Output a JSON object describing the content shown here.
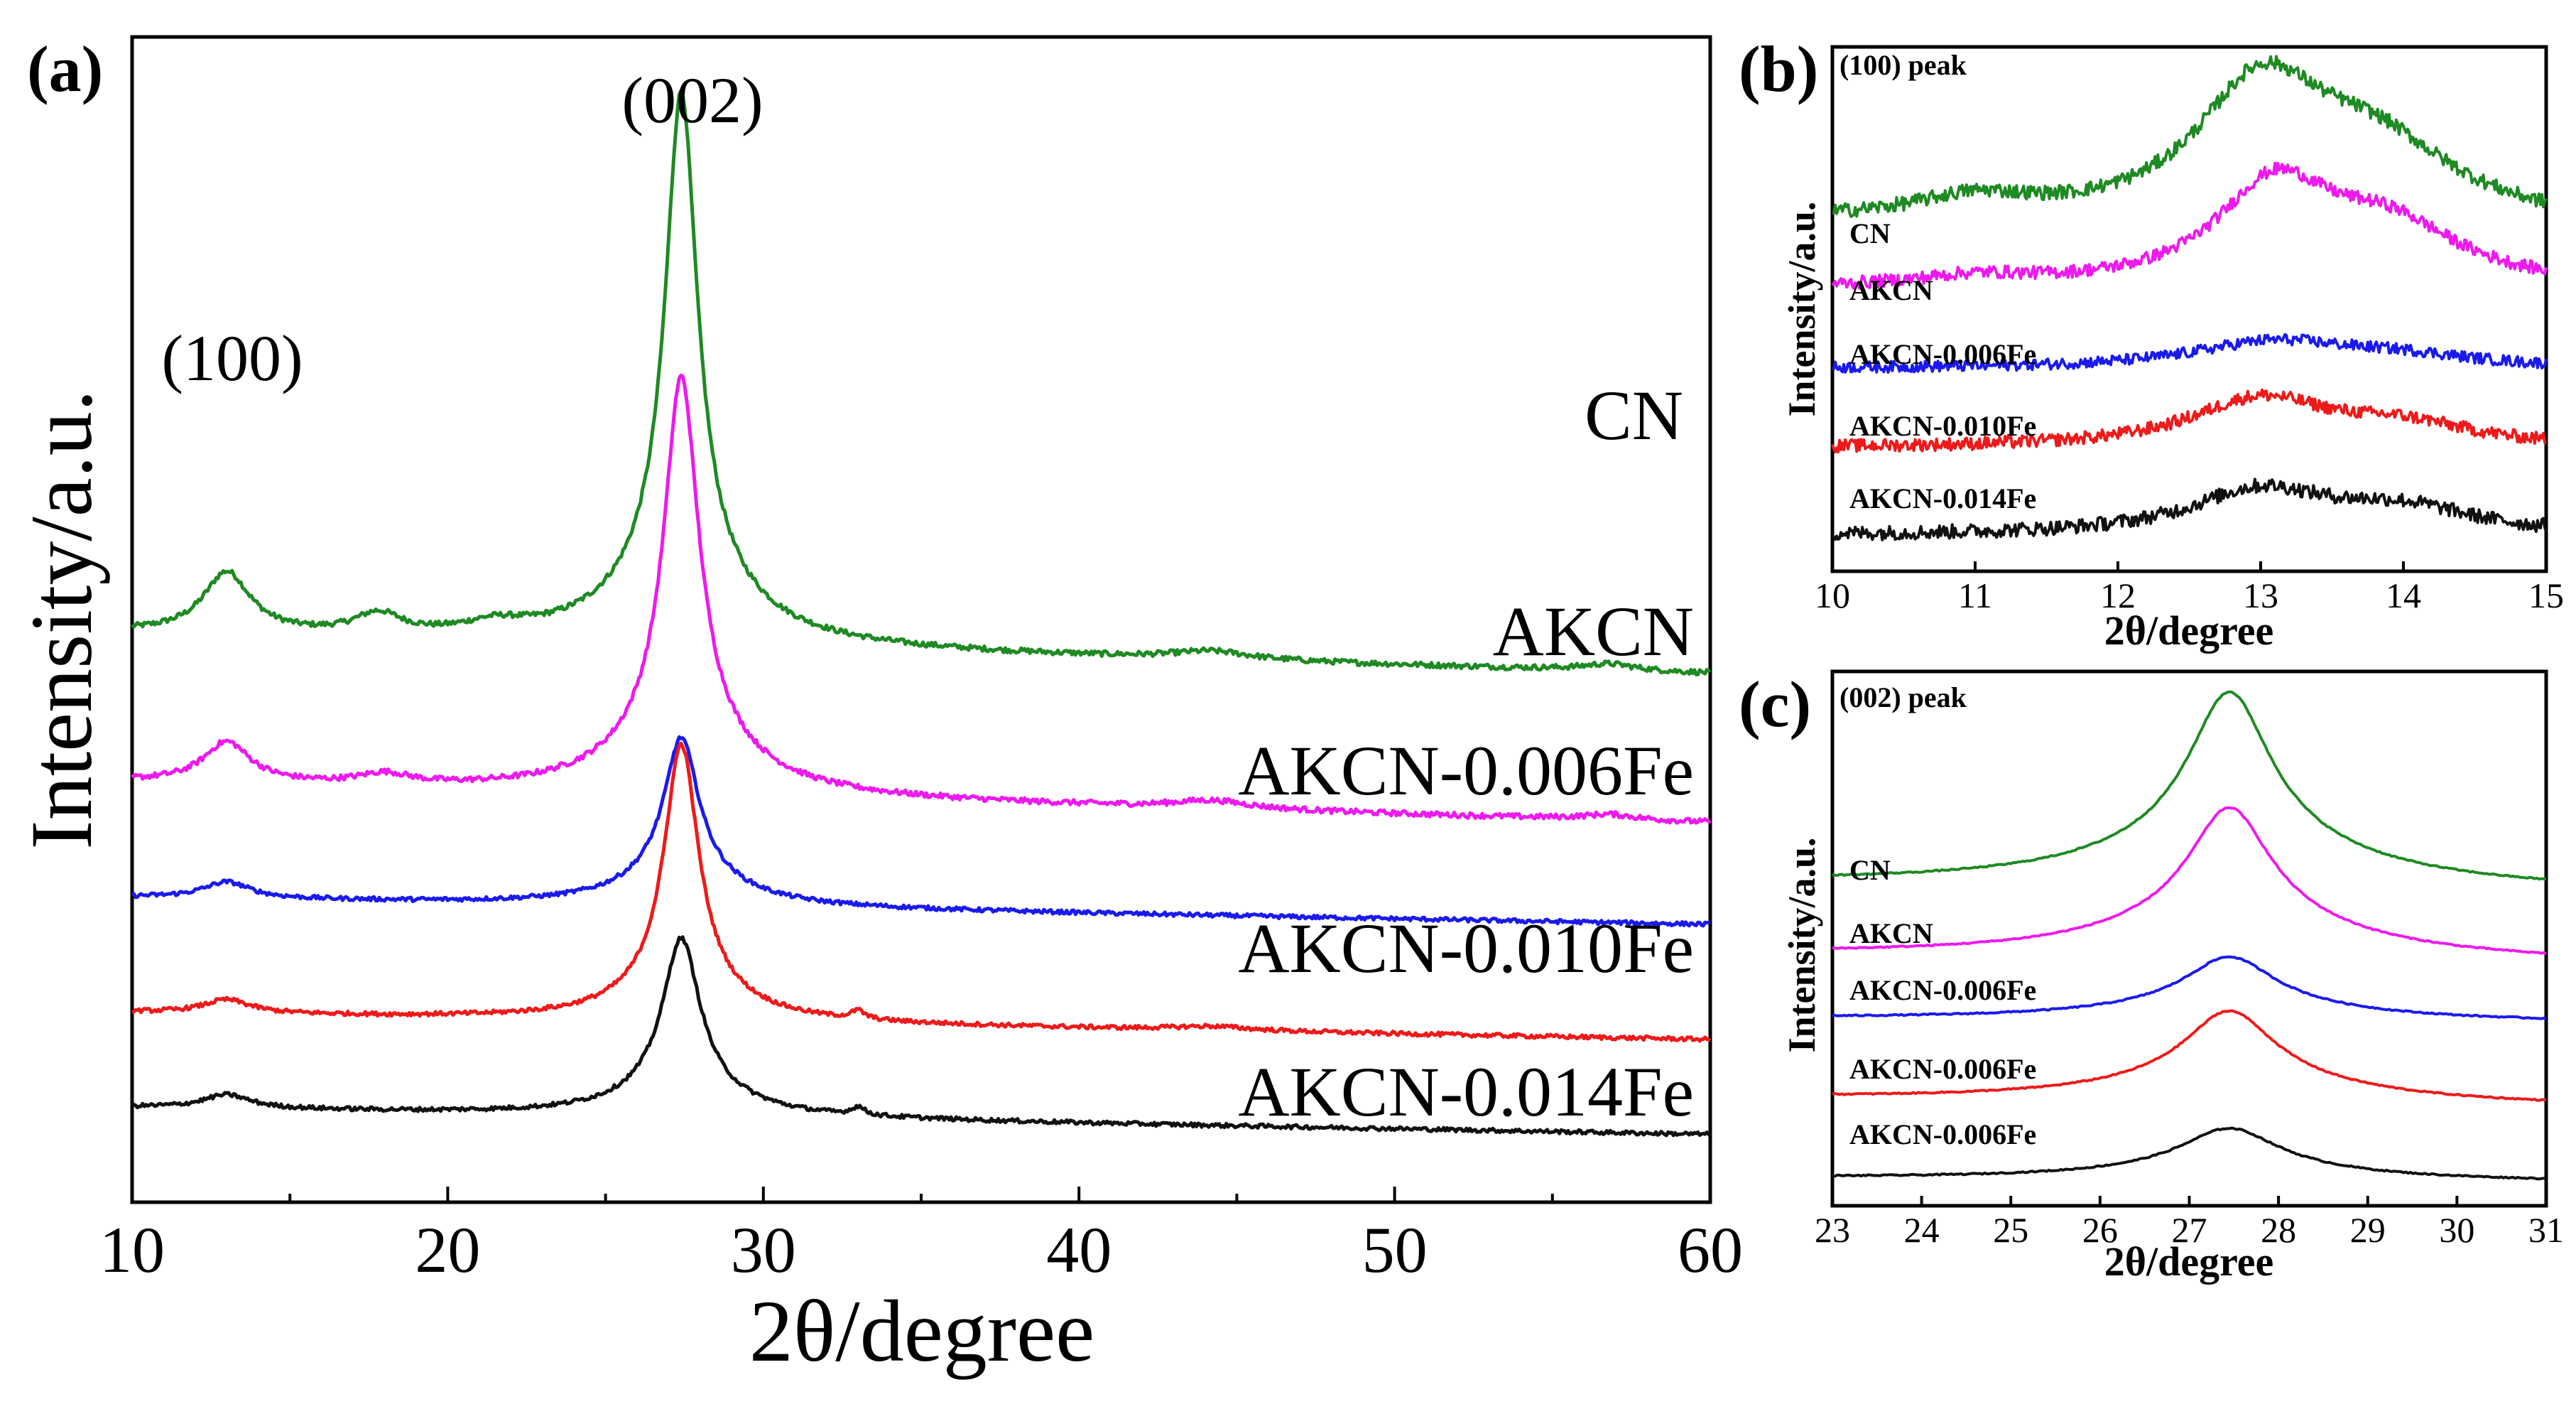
{
  "chart_data": [
    {
      "panel": "(a)",
      "type": "line",
      "title": "",
      "xlabel": "2θ/degree",
      "ylabel": "Intensity/a.u.",
      "xlim": [
        10,
        60
      ],
      "xticks": [
        10,
        20,
        30,
        40,
        50,
        60
      ],
      "peak_annotations": [
        {
          "label": "(100)",
          "x": 13.0
        },
        {
          "label": "(002)",
          "x": 27.4
        }
      ],
      "series": [
        {
          "name": "CN",
          "color": "#1e8a23",
          "baseline": 4.2,
          "tilt": -0.3,
          "peaks": [
            {
              "x": 13.0,
              "h": 0.45,
              "w": 0.9
            },
            {
              "x": 17.8,
              "h": 0.15,
              "w": 0.9
            },
            {
              "x": 21.5,
              "h": 0.08,
              "w": 1.2
            },
            {
              "x": 27.4,
              "h": 3.5,
              "w": 0.6
            },
            {
              "x": 27.4,
              "h": 0.6,
              "w": 2.2
            },
            {
              "x": 44.2,
              "h": 0.06,
              "w": 1.5
            },
            {
              "x": 56.8,
              "h": 0.05,
              "w": 1.0
            }
          ],
          "noise": 0.02
        },
        {
          "name": "AKCN",
          "color": "#ee19ee",
          "baseline": 3.1,
          "tilt": -0.3,
          "peaks": [
            {
              "x": 13.0,
              "h": 0.3,
              "w": 0.9
            },
            {
              "x": 18.0,
              "h": 0.08,
              "w": 1.0
            },
            {
              "x": 27.4,
              "h": 2.6,
              "w": 0.65
            },
            {
              "x": 27.4,
              "h": 0.5,
              "w": 2.2
            },
            {
              "x": 44.2,
              "h": 0.06,
              "w": 1.5
            },
            {
              "x": 56.8,
              "h": 0.04,
              "w": 1.0
            }
          ],
          "noise": 0.02
        },
        {
          "name": "AKCN-0.006Fe",
          "color": "#1a1aee",
          "baseline": 2.25,
          "tilt": -0.2,
          "peaks": [
            {
              "x": 13.0,
              "h": 0.12,
              "w": 0.9
            },
            {
              "x": 27.4,
              "h": 1.0,
              "w": 0.65
            },
            {
              "x": 27.4,
              "h": 0.25,
              "w": 2.0
            }
          ],
          "noise": 0.015
        },
        {
          "name": "AKCN-0.010Fe",
          "color": "#ee1a1a",
          "baseline": 1.4,
          "tilt": -0.2,
          "peaks": [
            {
              "x": 13.0,
              "h": 0.1,
              "w": 0.9
            },
            {
              "x": 27.4,
              "h": 1.8,
              "w": 0.65
            },
            {
              "x": 27.4,
              "h": 0.25,
              "w": 2.0
            },
            {
              "x": 33.0,
              "h": 0.06,
              "w": 0.25
            },
            {
              "x": 44.2,
              "h": 0.03,
              "w": 1.5
            }
          ],
          "noise": 0.015
        },
        {
          "name": "AKCN-0.014Fe",
          "color": "#111111",
          "baseline": 0.7,
          "tilt": -0.2,
          "peaks": [
            {
              "x": 13.0,
              "h": 0.1,
              "w": 0.9
            },
            {
              "x": 27.4,
              "h": 1.1,
              "w": 0.7
            },
            {
              "x": 27.4,
              "h": 0.22,
              "w": 2.0
            },
            {
              "x": 33.0,
              "h": 0.06,
              "w": 0.25
            }
          ],
          "noise": 0.015
        }
      ]
    },
    {
      "panel": "(b)",
      "type": "line",
      "title": "(100) peak",
      "xlabel": "2θ/degree",
      "ylabel": "Intensity/a.u.",
      "xlim": [
        10,
        15
      ],
      "xticks": [
        10,
        11,
        12,
        13,
        14,
        15
      ],
      "series": [
        {
          "name": "CN",
          "color": "#1e8a23",
          "baseline": 4.4,
          "tilt": -0.1,
          "peaks": [
            {
              "x": 13.0,
              "h": 1.65,
              "w": 0.55
            },
            {
              "x": 13.8,
              "h": 0.9,
              "w": 0.7
            },
            {
              "x": 11.0,
              "h": 0.25,
              "w": 0.5
            }
          ],
          "noise": 0.09
        },
        {
          "name": "AKCN",
          "color": "#ee19ee",
          "baseline": 3.55,
          "tilt": 0.0,
          "peaks": [
            {
              "x": 13.1,
              "h": 1.25,
              "w": 0.5
            },
            {
              "x": 13.9,
              "h": 0.7,
              "w": 0.6
            },
            {
              "x": 11.0,
              "h": 0.12,
              "w": 0.5
            }
          ],
          "noise": 0.08
        },
        {
          "name": "AKCN-0.006Fe",
          "color": "#1a1aee",
          "baseline": 2.55,
          "tilt": 0.0,
          "peaks": [
            {
              "x": 13.1,
              "h": 0.33,
              "w": 0.7
            },
            {
              "x": 14.0,
              "h": 0.12,
              "w": 0.6
            }
          ],
          "noise": 0.07
        },
        {
          "name": "AKCN-0.010Fe",
          "color": "#ee1a1a",
          "baseline": 1.55,
          "tilt": 0.0,
          "peaks": [
            {
              "x": 13.0,
              "h": 0.6,
              "w": 0.6
            },
            {
              "x": 14.0,
              "h": 0.25,
              "w": 0.6
            }
          ],
          "noise": 0.08
        },
        {
          "name": "AKCN-0.014Fe",
          "color": "#111111",
          "baseline": 0.45,
          "tilt": 0.0,
          "peaks": [
            {
              "x": 13.0,
              "h": 0.55,
              "w": 0.6
            },
            {
              "x": 14.0,
              "h": 0.3,
              "w": 0.6
            }
          ],
          "noise": 0.09
        }
      ]
    },
    {
      "panel": "(c)",
      "type": "line",
      "title": "(002) peak",
      "xlabel": "2θ/degree",
      "ylabel": "Intensity/a.u.",
      "xlim": [
        23,
        31
      ],
      "xticks": [
        23,
        24,
        25,
        26,
        27,
        28,
        29,
        30,
        31
      ],
      "series": [
        {
          "name": "CN",
          "color": "#1e8a23",
          "baseline": 4.05,
          "tilt": -0.1,
          "peaks": [
            {
              "x": 27.45,
              "h": 1.85,
              "w": 0.55
            },
            {
              "x": 27.45,
              "h": 0.6,
              "w": 1.6
            }
          ],
          "noise": 0.008
        },
        {
          "name": "AKCN",
          "color": "#ee19ee",
          "baseline": 3.15,
          "tilt": -0.1,
          "peaks": [
            {
              "x": 27.45,
              "h": 1.4,
              "w": 0.55
            },
            {
              "x": 27.45,
              "h": 0.5,
              "w": 1.6
            }
          ],
          "noise": 0.008
        },
        {
          "name": "AKCN-0.006Fe",
          "color": "#1a1aee",
          "baseline": 2.35,
          "tilt": -0.05,
          "peaks": [
            {
              "x": 27.45,
              "h": 0.6,
              "w": 0.6
            },
            {
              "x": 27.45,
              "h": 0.2,
              "w": 1.6
            }
          ],
          "noise": 0.008
        },
        {
          "name": "AKCN-0.006Fe",
          "color": "#ee1a1a",
          "baseline": 1.35,
          "tilt": -0.1,
          "peaks": [
            {
              "x": 27.45,
              "h": 0.85,
              "w": 0.6
            },
            {
              "x": 27.45,
              "h": 0.3,
              "w": 1.6
            }
          ],
          "noise": 0.008
        },
        {
          "name": "AKCN-0.006Fe",
          "color": "#111111",
          "baseline": 0.35,
          "tilt": -0.05,
          "peaks": [
            {
              "x": 27.45,
              "h": 0.5,
              "w": 0.65
            },
            {
              "x": 27.45,
              "h": 0.15,
              "w": 1.6
            }
          ],
          "noise": 0.008
        }
      ]
    }
  ]
}
